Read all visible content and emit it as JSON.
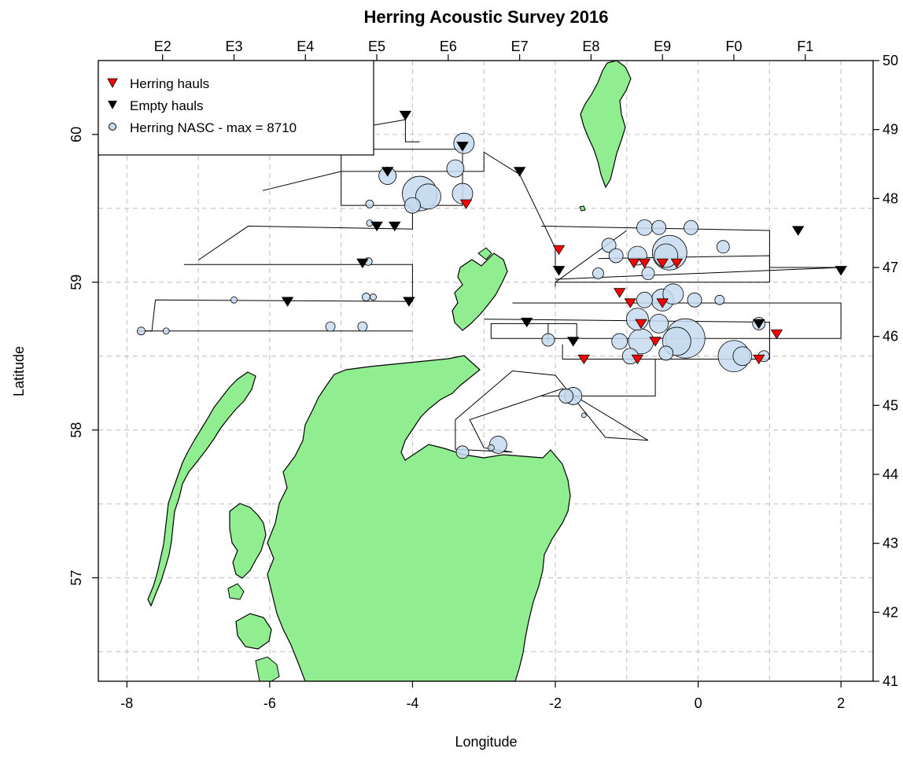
{
  "chart_data": {
    "type": "map",
    "title": "Herring Acoustic Survey 2016",
    "xlabel": "Longitude",
    "ylabel": "Latitude",
    "xlim": [
      -8.4,
      2.45
    ],
    "ylim": [
      56.3,
      60.5
    ],
    "grid": true,
    "x_ticks": [
      -8,
      -6,
      -4,
      -2,
      0,
      2
    ],
    "y_ticks": [
      57,
      58,
      59,
      60
    ],
    "x_tick_labels": [
      "-8",
      "-6",
      "-4",
      "-2",
      "0",
      "2"
    ],
    "y_tick_labels": [
      "57",
      "58",
      "59",
      "60"
    ],
    "ices_rectangles_top": [
      {
        "label": "E2",
        "lon": -7.5
      },
      {
        "label": "E3",
        "lon": -6.5
      },
      {
        "label": "E4",
        "lon": -5.5
      },
      {
        "label": "E5",
        "lon": -4.5
      },
      {
        "label": "E6",
        "lon": -3.5
      },
      {
        "label": "E7",
        "lon": -2.5
      },
      {
        "label": "E8",
        "lon": -1.5
      },
      {
        "label": "E9",
        "lon": -0.5
      },
      {
        "label": "F0",
        "lon": 0.5
      },
      {
        "label": "F1",
        "lon": 1.5
      }
    ],
    "ices_rectangles_right": [
      {
        "label": "41",
        "lat": 56.25
      },
      {
        "label": "42",
        "lat": 56.75
      },
      {
        "label": "43",
        "lat": 57.25
      },
      {
        "label": "44",
        "lat": 57.75
      },
      {
        "label": "45",
        "lat": 58.25
      },
      {
        "label": "46",
        "lat": 58.75
      },
      {
        "label": "47",
        "lat": 59.25
      },
      {
        "label": "48",
        "lat": 59.75
      },
      {
        "label": "49",
        "lat": 60.25
      },
      {
        "label": "50",
        "lat": 60.75
      }
    ],
    "legend": {
      "position": "top-left",
      "entries": [
        "Herring hauls",
        "Empty hauls",
        "Herring NASC - max = 8710"
      ]
    },
    "colors": {
      "land": "#90ee90",
      "herring_haul": "#ff0000",
      "empty_haul": "#000000",
      "nasc_fill": "#c6dbef",
      "nasc_edge": "#000000",
      "grid": "#c8c8c8"
    },
    "transects": [
      [
        [
          -4.7,
          60.05
        ],
        [
          -4.1,
          60.1
        ],
        [
          -4.1,
          59.95
        ],
        [
          -3.9,
          59.95
        ]
      ],
      [
        [
          -6.1,
          59.62
        ],
        [
          -5.0,
          59.75
        ],
        [
          -4.0,
          59.75
        ],
        [
          -3.0,
          59.75
        ],
        [
          -3.0,
          59.88
        ],
        [
          -2.5,
          59.73
        ],
        [
          -2.0,
          59.23
        ],
        [
          -2.0,
          59.1
        ]
      ],
      [
        [
          -5.0,
          59.9
        ],
        [
          -3.3,
          59.9
        ],
        [
          -3.3,
          59.52
        ],
        [
          -5.0,
          59.52
        ],
        [
          -5.0,
          59.9
        ]
      ],
      [
        [
          -7.0,
          59.15
        ],
        [
          -6.3,
          59.38
        ],
        [
          -4.0,
          59.36
        ],
        [
          -4.0,
          59.57
        ]
      ],
      [
        [
          -7.2,
          59.12
        ],
        [
          -4.0,
          59.12
        ],
        [
          -4.0,
          58.87
        ],
        [
          -7.6,
          58.88
        ],
        [
          -7.65,
          58.67
        ],
        [
          -7.85,
          58.67
        ]
      ],
      [
        [
          -7.85,
          58.67
        ],
        [
          -4.0,
          58.67
        ]
      ],
      [
        [
          -2.2,
          59.38
        ],
        [
          1.0,
          59.35
        ],
        [
          1.0,
          59.1
        ],
        [
          2.0,
          59.1
        ]
      ],
      [
        [
          -2.0,
          59.0
        ],
        [
          -1.0,
          59.35
        ]
      ],
      [
        [
          -2.0,
          59.02
        ],
        [
          2.0,
          59.1
        ]
      ],
      [
        [
          -1.4,
          59.16
        ],
        [
          1.0,
          59.18
        ],
        [
          1.0,
          59.0
        ],
        [
          -2.0,
          59.0
        ],
        [
          -2.0,
          58.97
        ]
      ],
      [
        [
          -2.6,
          58.86
        ],
        [
          2.0,
          58.86
        ],
        [
          2.0,
          58.62
        ],
        [
          -2.9,
          58.62
        ],
        [
          -2.9,
          58.72
        ],
        [
          -1.7,
          58.72
        ],
        [
          -1.7,
          58.6
        ]
      ],
      [
        [
          -3.0,
          58.75
        ],
        [
          1.0,
          58.73
        ],
        [
          1.0,
          58.48
        ],
        [
          -1.9,
          58.48
        ],
        [
          -1.9,
          58.58
        ]
      ],
      [
        [
          -2.1,
          58.6
        ],
        [
          -2.1,
          58.72
        ]
      ],
      [
        [
          -2.2,
          58.23
        ],
        [
          -0.6,
          58.23
        ],
        [
          -0.6,
          58.48
        ],
        [
          0.9,
          58.48
        ]
      ],
      [
        [
          -3.4,
          58.07
        ],
        [
          -2.6,
          58.4
        ],
        [
          -2.0,
          58.37
        ],
        [
          -1.3,
          57.95
        ],
        [
          -0.7,
          57.93
        ],
        [
          -1.9,
          58.28
        ],
        [
          -3.2,
          58.07
        ],
        [
          -3.0,
          57.88
        ],
        [
          -2.6,
          57.85
        ],
        [
          -3.4,
          57.87
        ],
        [
          -3.4,
          58.07
        ]
      ]
    ],
    "nasc_points": [
      {
        "lon": -3.28,
        "lat": 59.94,
        "r": 13
      },
      {
        "lon": -3.4,
        "lat": 59.77,
        "r": 11
      },
      {
        "lon": -3.9,
        "lat": 59.6,
        "r": 22
      },
      {
        "lon": -3.78,
        "lat": 59.58,
        "r": 16
      },
      {
        "lon": -3.3,
        "lat": 59.6,
        "r": 13
      },
      {
        "lon": -4.35,
        "lat": 59.72,
        "r": 11
      },
      {
        "lon": -4.0,
        "lat": 59.52,
        "r": 10
      },
      {
        "lon": -4.6,
        "lat": 59.53,
        "r": 5
      },
      {
        "lon": -4.6,
        "lat": 59.4,
        "r": 4
      },
      {
        "lon": -4.62,
        "lat": 59.14,
        "r": 5
      },
      {
        "lon": -4.65,
        "lat": 58.9,
        "r": 5
      },
      {
        "lon": -4.55,
        "lat": 58.9,
        "r": 4
      },
      {
        "lon": -5.15,
        "lat": 58.7,
        "r": 6
      },
      {
        "lon": -4.7,
        "lat": 58.7,
        "r": 6
      },
      {
        "lon": -6.5,
        "lat": 58.88,
        "r": 4
      },
      {
        "lon": -7.45,
        "lat": 58.67,
        "r": 4
      },
      {
        "lon": -7.8,
        "lat": 58.67,
        "r": 5
      },
      {
        "lon": -0.75,
        "lat": 59.37,
        "r": 10
      },
      {
        "lon": -0.55,
        "lat": 59.37,
        "r": 9
      },
      {
        "lon": -0.1,
        "lat": 59.37,
        "r": 9
      },
      {
        "lon": 0.35,
        "lat": 59.24,
        "r": 8
      },
      {
        "lon": -1.25,
        "lat": 59.25,
        "r": 9
      },
      {
        "lon": -0.4,
        "lat": 59.2,
        "r": 22
      },
      {
        "lon": -0.45,
        "lat": 59.18,
        "r": 15
      },
      {
        "lon": -0.85,
        "lat": 59.18,
        "r": 12
      },
      {
        "lon": -1.15,
        "lat": 59.18,
        "r": 9
      },
      {
        "lon": -1.4,
        "lat": 59.06,
        "r": 7
      },
      {
        "lon": -0.7,
        "lat": 59.06,
        "r": 8
      },
      {
        "lon": -0.35,
        "lat": 58.92,
        "r": 13
      },
      {
        "lon": -0.5,
        "lat": 58.88,
        "r": 14
      },
      {
        "lon": -0.75,
        "lat": 58.88,
        "r": 10
      },
      {
        "lon": -0.05,
        "lat": 58.88,
        "r": 9
      },
      {
        "lon": 0.3,
        "lat": 58.88,
        "r": 6
      },
      {
        "lon": -0.85,
        "lat": 58.75,
        "r": 14
      },
      {
        "lon": -0.55,
        "lat": 58.72,
        "r": 12
      },
      {
        "lon": 0.85,
        "lat": 58.72,
        "r": 8
      },
      {
        "lon": -0.18,
        "lat": 58.62,
        "r": 25
      },
      {
        "lon": -0.3,
        "lat": 58.6,
        "r": 18
      },
      {
        "lon": -0.8,
        "lat": 58.6,
        "r": 16
      },
      {
        "lon": -1.1,
        "lat": 58.6,
        "r": 10
      },
      {
        "lon": -2.1,
        "lat": 58.61,
        "r": 8
      },
      {
        "lon": 0.5,
        "lat": 58.5,
        "r": 20
      },
      {
        "lon": 0.62,
        "lat": 58.5,
        "r": 12
      },
      {
        "lon": -0.95,
        "lat": 58.5,
        "r": 10
      },
      {
        "lon": -0.45,
        "lat": 58.52,
        "r": 9
      },
      {
        "lon": 0.92,
        "lat": 58.5,
        "r": 7
      },
      {
        "lon": -1.85,
        "lat": 58.23,
        "r": 9
      },
      {
        "lon": -1.75,
        "lat": 58.23,
        "r": 11
      },
      {
        "lon": -2.8,
        "lat": 57.9,
        "r": 11
      },
      {
        "lon": -3.3,
        "lat": 57.85,
        "r": 8
      },
      {
        "lon": -2.9,
        "lat": 57.88,
        "r": 4
      },
      {
        "lon": -1.6,
        "lat": 58.1,
        "r": 3
      }
    ],
    "herring_hauls": [
      {
        "lon": -3.25,
        "lat": 59.53
      },
      {
        "lon": -1.95,
        "lat": 59.22
      },
      {
        "lon": -0.9,
        "lat": 59.13
      },
      {
        "lon": -0.75,
        "lat": 59.13
      },
      {
        "lon": -0.5,
        "lat": 59.13
      },
      {
        "lon": -0.3,
        "lat": 59.13
      },
      {
        "lon": -1.1,
        "lat": 58.93
      },
      {
        "lon": -0.95,
        "lat": 58.86
      },
      {
        "lon": -0.5,
        "lat": 58.86
      },
      {
        "lon": -0.8,
        "lat": 58.72
      },
      {
        "lon": -0.6,
        "lat": 58.6
      },
      {
        "lon": -0.85,
        "lat": 58.48
      },
      {
        "lon": -1.6,
        "lat": 58.48
      },
      {
        "lon": 0.85,
        "lat": 58.48
      },
      {
        "lon": 1.1,
        "lat": 58.65
      }
    ],
    "empty_hauls": [
      {
        "lon": -4.1,
        "lat": 60.13
      },
      {
        "lon": -3.3,
        "lat": 59.92
      },
      {
        "lon": -4.35,
        "lat": 59.75
      },
      {
        "lon": -2.5,
        "lat": 59.75
      },
      {
        "lon": -4.5,
        "lat": 59.38
      },
      {
        "lon": -4.25,
        "lat": 59.38
      },
      {
        "lon": -4.7,
        "lat": 59.13
      },
      {
        "lon": -5.75,
        "lat": 58.87
      },
      {
        "lon": -4.05,
        "lat": 58.87
      },
      {
        "lon": -1.95,
        "lat": 59.08
      },
      {
        "lon": -2.4,
        "lat": 58.73
      },
      {
        "lon": -1.75,
        "lat": 58.6
      },
      {
        "lon": 1.4,
        "lat": 59.35
      },
      {
        "lon": 2.0,
        "lat": 59.08
      },
      {
        "lon": 0.85,
        "lat": 58.72
      }
    ]
  }
}
